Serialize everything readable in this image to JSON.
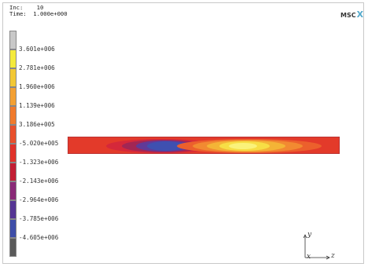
{
  "header": {
    "inc_label": "Inc:",
    "inc_value": "10",
    "time_label": "Time:",
    "time_value": "1.000e+000"
  },
  "logo": {
    "text": "MSC",
    "mark": "X"
  },
  "legend": {
    "colors": [
      "#c8c8c8",
      "#f4ea3c",
      "#f2c835",
      "#f3a033",
      "#f07a2c",
      "#e8502c",
      "#e0322a",
      "#c21e34",
      "#8a2a78",
      "#553594",
      "#3e4ea8",
      "#5a5a5a"
    ],
    "labels": [
      "3.601e+006",
      "2.781e+006",
      "1.960e+006",
      "1.139e+006",
      "3.186e+005",
      "-5.020e+005",
      "-1.323e+006",
      "-2.143e+006",
      "-2.964e+006",
      "-3.785e+006",
      "-4.605e+006"
    ]
  },
  "axes": {
    "y": "y",
    "x": "x",
    "z": "z"
  }
}
